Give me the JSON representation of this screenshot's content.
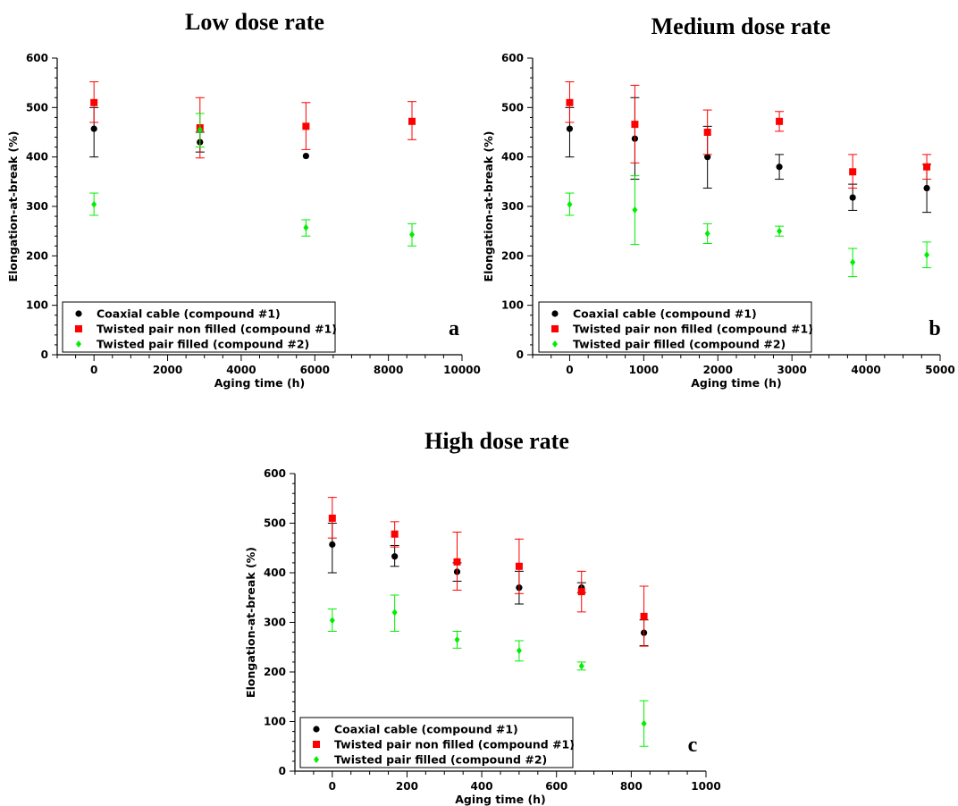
{
  "chart_data": [
    {
      "type": "scatter",
      "title": "Low dose rate",
      "panel_label": "a",
      "xlabel": "Aging time (h)",
      "ylabel": "Elongation-at-break (%)",
      "xlim": [
        -1000,
        10000
      ],
      "ylim": [
        0,
        600
      ],
      "xticks": [
        0,
        2000,
        4000,
        6000,
        8000,
        10000
      ],
      "yticks": [
        0,
        100,
        200,
        300,
        400,
        500,
        600
      ],
      "grid": false,
      "legend_position": "bottom-left",
      "series": [
        {
          "name": "Coaxial cable (compound #1)",
          "marker": "circle",
          "color": "#000000",
          "points": [
            {
              "x": 0,
              "y": 457,
              "lo": 400,
              "hi": 500
            },
            {
              "x": 2880,
              "y": 430,
              "lo": 410,
              "hi": 450
            },
            {
              "x": 5760,
              "y": 402,
              "lo": null,
              "hi": null
            }
          ]
        },
        {
          "name": "Twisted pair non filled (compound #1)",
          "marker": "square",
          "color": "#ff0000",
          "points": [
            {
              "x": 0,
              "y": 510,
              "lo": 470,
              "hi": 552
            },
            {
              "x": 2880,
              "y": 459,
              "lo": 398,
              "hi": 520
            },
            {
              "x": 5760,
              "y": 462,
              "lo": 415,
              "hi": 510
            },
            {
              "x": 8640,
              "y": 472,
              "lo": 435,
              "hi": 512
            }
          ]
        },
        {
          "name": "Twisted pair filled (compound #2)",
          "marker": "diamond",
          "color": "#00ee00",
          "points": [
            {
              "x": 0,
              "y": 304,
              "lo": 282,
              "hi": 327
            },
            {
              "x": 2880,
              "y": 455,
              "lo": 420,
              "hi": 488
            },
            {
              "x": 5760,
              "y": 257,
              "lo": 240,
              "hi": 273
            },
            {
              "x": 8640,
              "y": 243,
              "lo": 220,
              "hi": 265
            }
          ]
        }
      ]
    },
    {
      "type": "scatter",
      "title": "Medium dose rate",
      "panel_label": "b",
      "xlabel": "Aging time (h)",
      "ylabel": "Elongation-at-break (%)",
      "xlim": [
        -500,
        5000
      ],
      "ylim": [
        0,
        600
      ],
      "xticks": [
        0,
        1000,
        2000,
        3000,
        4000,
        5000
      ],
      "yticks": [
        0,
        100,
        200,
        300,
        400,
        500,
        600
      ],
      "grid": false,
      "legend_position": "bottom-left",
      "series": [
        {
          "name": "Coaxial cable (compound #1)",
          "marker": "circle",
          "color": "#000000",
          "points": [
            {
              "x": 0,
              "y": 457,
              "lo": 400,
              "hi": 500
            },
            {
              "x": 880,
              "y": 437,
              "lo": 355,
              "hi": 520
            },
            {
              "x": 1860,
              "y": 400,
              "lo": 337,
              "hi": 462
            },
            {
              "x": 2830,
              "y": 380,
              "lo": 355,
              "hi": 405
            },
            {
              "x": 3820,
              "y": 318,
              "lo": 292,
              "hi": 345
            },
            {
              "x": 4820,
              "y": 337,
              "lo": 288,
              "hi": 385
            }
          ]
        },
        {
          "name": "Twisted pair non filled (compound #1)",
          "marker": "square",
          "color": "#ff0000",
          "points": [
            {
              "x": 0,
              "y": 510,
              "lo": 470,
              "hi": 552
            },
            {
              "x": 880,
              "y": 466,
              "lo": 388,
              "hi": 545
            },
            {
              "x": 1860,
              "y": 450,
              "lo": 405,
              "hi": 495
            },
            {
              "x": 2830,
              "y": 472,
              "lo": 452,
              "hi": 492
            },
            {
              "x": 3820,
              "y": 370,
              "lo": 337,
              "hi": 405
            },
            {
              "x": 4820,
              "y": 380,
              "lo": 355,
              "hi": 405
            }
          ]
        },
        {
          "name": "Twisted pair filled (compound #2)",
          "marker": "diamond",
          "color": "#00ee00",
          "points": [
            {
              "x": 0,
              "y": 304,
              "lo": 282,
              "hi": 327
            },
            {
              "x": 880,
              "y": 293,
              "lo": 223,
              "hi": 362
            },
            {
              "x": 1860,
              "y": 245,
              "lo": 225,
              "hi": 265
            },
            {
              "x": 2830,
              "y": 250,
              "lo": 240,
              "hi": 260
            },
            {
              "x": 3820,
              "y": 187,
              "lo": 158,
              "hi": 215
            },
            {
              "x": 4820,
              "y": 202,
              "lo": 176,
              "hi": 228
            }
          ]
        }
      ]
    },
    {
      "type": "scatter",
      "title": "High dose rate",
      "panel_label": "c",
      "xlabel": "Aging time (h)",
      "ylabel": "Elongation-at-break (%)",
      "xlim": [
        -100,
        1000
      ],
      "ylim": [
        0,
        600
      ],
      "xticks": [
        0,
        200,
        400,
        600,
        800,
        1000
      ],
      "yticks": [
        0,
        100,
        200,
        300,
        400,
        500,
        600
      ],
      "grid": false,
      "legend_position": "bottom-left",
      "series": [
        {
          "name": "Coaxial cable (compound #1)",
          "marker": "circle",
          "color": "#000000",
          "points": [
            {
              "x": 0,
              "y": 457,
              "lo": 400,
              "hi": 500
            },
            {
              "x": 167,
              "y": 433,
              "lo": 413,
              "hi": 455
            },
            {
              "x": 334,
              "y": 402,
              "lo": 383,
              "hi": 420
            },
            {
              "x": 500,
              "y": 370,
              "lo": 337,
              "hi": 403
            },
            {
              "x": 667,
              "y": 370,
              "lo": 360,
              "hi": 380
            },
            {
              "x": 834,
              "y": 279,
              "lo": 253,
              "hi": 305
            }
          ]
        },
        {
          "name": "Twisted pair non filled (compound #1)",
          "marker": "square",
          "color": "#ff0000",
          "points": [
            {
              "x": 0,
              "y": 510,
              "lo": 470,
              "hi": 552
            },
            {
              "x": 167,
              "y": 478,
              "lo": 452,
              "hi": 503
            },
            {
              "x": 334,
              "y": 422,
              "lo": 365,
              "hi": 482
            },
            {
              "x": 500,
              "y": 413,
              "lo": 358,
              "hi": 468
            },
            {
              "x": 667,
              "y": 362,
              "lo": 321,
              "hi": 403
            },
            {
              "x": 834,
              "y": 312,
              "lo": 252,
              "hi": 373
            }
          ]
        },
        {
          "name": "Twisted pair filled (compound #2)",
          "marker": "diamond",
          "color": "#00ee00",
          "points": [
            {
              "x": 0,
              "y": 304,
              "lo": 282,
              "hi": 327
            },
            {
              "x": 167,
              "y": 320,
              "lo": 282,
              "hi": 355
            },
            {
              "x": 334,
              "y": 265,
              "lo": 248,
              "hi": 282
            },
            {
              "x": 500,
              "y": 243,
              "lo": 222,
              "hi": 263
            },
            {
              "x": 667,
              "y": 212,
              "lo": 204,
              "hi": 220
            },
            {
              "x": 834,
              "y": 96,
              "lo": 50,
              "hi": 142
            }
          ]
        }
      ]
    }
  ]
}
